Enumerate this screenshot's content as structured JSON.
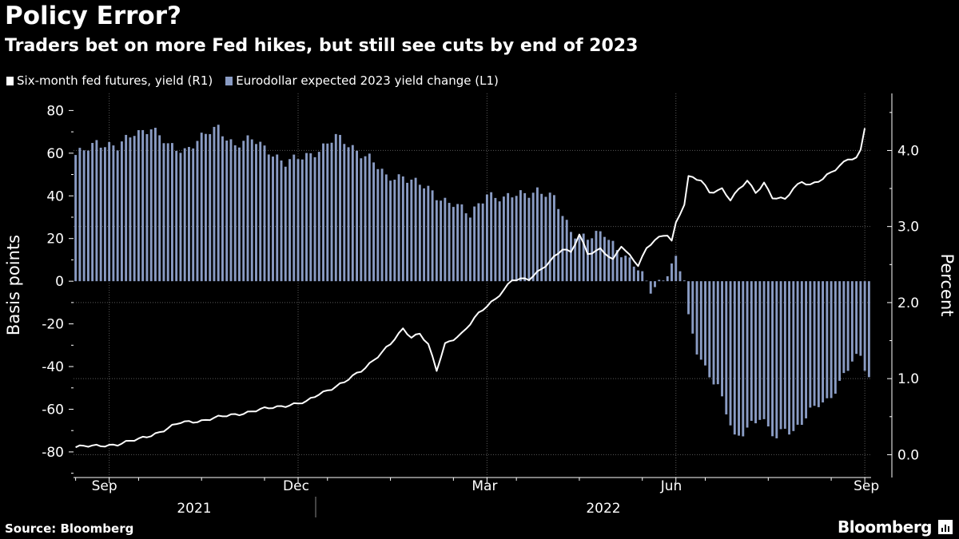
{
  "header": {
    "title": "Policy Error?",
    "subtitle": "Traders bet on more Fed hikes, but still see cuts by end of 2023"
  },
  "legend": {
    "line_label": "Six-month fed futures, yield (R1)",
    "bar_label": "Eurodollar expected 2023 yield change (L1)"
  },
  "footer": {
    "source": "Source: Bloomberg",
    "brand": "Bloomberg"
  },
  "colors": {
    "background": "#000000",
    "line": "#ffffff",
    "bars": "#8a9cc4",
    "grid": "#5a5a5a",
    "text": "#ffffff"
  },
  "chart_data": {
    "type": "bar+line",
    "title": "Policy Error?",
    "subtitle": "Traders bet on more Fed hikes, but still see cuts by end of 2023",
    "left_axis": {
      "label": "Basis points",
      "range": [
        -92,
        88
      ],
      "ticks": [
        80,
        60,
        40,
        20,
        0,
        -20,
        -40,
        -60,
        -80
      ]
    },
    "right_axis": {
      "label": "Percent",
      "range": [
        -0.3,
        4.75
      ],
      "ticks": [
        "4.0",
        "3.0",
        "2.0",
        "1.0",
        "0.0"
      ]
    },
    "x_axis": {
      "month_ticks": [
        "Sep",
        "Dec",
        "Mar",
        "Jun",
        "Sep"
      ],
      "month_tick_index": [
        8,
        53,
        98,
        143,
        188
      ],
      "year_labels": [
        "2021",
        "2022"
      ],
      "total_days": 190
    },
    "series": [
      {
        "name": "Eurodollar expected 2023 yield change (L1)",
        "axis": "left",
        "kind": "bar",
        "keypoints": [
          [
            0,
            58
          ],
          [
            5,
            66
          ],
          [
            10,
            62
          ],
          [
            14,
            70
          ],
          [
            18,
            72
          ],
          [
            22,
            63
          ],
          [
            26,
            62
          ],
          [
            30,
            67
          ],
          [
            34,
            72
          ],
          [
            38,
            64
          ],
          [
            42,
            66
          ],
          [
            46,
            62
          ],
          [
            50,
            55
          ],
          [
            54,
            58
          ],
          [
            58,
            62
          ],
          [
            62,
            67
          ],
          [
            66,
            63
          ],
          [
            70,
            58
          ],
          [
            74,
            48
          ],
          [
            78,
            50
          ],
          [
            82,
            45
          ],
          [
            86,
            40
          ],
          [
            90,
            37
          ],
          [
            94,
            30
          ],
          [
            98,
            42
          ],
          [
            102,
            38
          ],
          [
            106,
            41
          ],
          [
            110,
            43
          ],
          [
            114,
            38
          ],
          [
            118,
            24
          ],
          [
            122,
            20
          ],
          [
            126,
            22
          ],
          [
            130,
            14
          ],
          [
            134,
            5
          ],
          [
            137,
            -4
          ],
          [
            140,
            2
          ],
          [
            143,
            10
          ],
          [
            145,
            0
          ],
          [
            146,
            -18
          ],
          [
            148,
            -32
          ],
          [
            150,
            -40
          ],
          [
            153,
            -50
          ],
          [
            155,
            -62
          ],
          [
            157,
            -74
          ],
          [
            159,
            -70
          ],
          [
            161,
            -66
          ],
          [
            163,
            -64
          ],
          [
            165,
            -70
          ],
          [
            167,
            -74
          ],
          [
            169,
            -68
          ],
          [
            171,
            -70
          ],
          [
            173,
            -66
          ],
          [
            175,
            -62
          ],
          [
            177,
            -58
          ],
          [
            179,
            -56
          ],
          [
            181,
            -50
          ],
          [
            183,
            -44
          ],
          [
            185,
            -38
          ],
          [
            187,
            -36
          ],
          [
            189,
            -45
          ]
        ]
      },
      {
        "name": "Six-month fed futures, yield (R1)",
        "axis": "right",
        "kind": "line",
        "keypoints": [
          [
            0,
            0.11
          ],
          [
            5,
            0.11
          ],
          [
            10,
            0.14
          ],
          [
            15,
            0.2
          ],
          [
            20,
            0.3
          ],
          [
            25,
            0.42
          ],
          [
            30,
            0.45
          ],
          [
            35,
            0.5
          ],
          [
            40,
            0.55
          ],
          [
            45,
            0.6
          ],
          [
            50,
            0.65
          ],
          [
            55,
            0.69
          ],
          [
            58,
            0.8
          ],
          [
            60,
            0.85
          ],
          [
            64,
            0.95
          ],
          [
            68,
            1.1
          ],
          [
            72,
            1.3
          ],
          [
            75,
            1.45
          ],
          [
            78,
            1.65
          ],
          [
            80,
            1.55
          ],
          [
            82,
            1.6
          ],
          [
            84,
            1.45
          ],
          [
            86,
            1.1
          ],
          [
            88,
            1.45
          ],
          [
            92,
            1.6
          ],
          [
            96,
            1.85
          ],
          [
            100,
            2.05
          ],
          [
            104,
            2.3
          ],
          [
            108,
            2.3
          ],
          [
            112,
            2.5
          ],
          [
            116,
            2.7
          ],
          [
            118,
            2.65
          ],
          [
            120,
            2.9
          ],
          [
            122,
            2.65
          ],
          [
            125,
            2.7
          ],
          [
            128,
            2.55
          ],
          [
            130,
            2.75
          ],
          [
            134,
            2.5
          ],
          [
            136,
            2.7
          ],
          [
            138,
            2.82
          ],
          [
            141,
            2.9
          ],
          [
            142,
            2.82
          ],
          [
            143,
            3.05
          ],
          [
            145,
            3.3
          ],
          [
            146,
            3.65
          ],
          [
            149,
            3.6
          ],
          [
            151,
            3.45
          ],
          [
            154,
            3.5
          ],
          [
            156,
            3.35
          ],
          [
            158,
            3.48
          ],
          [
            160,
            3.6
          ],
          [
            162,
            3.45
          ],
          [
            164,
            3.58
          ],
          [
            166,
            3.38
          ],
          [
            169,
            3.35
          ],
          [
            171,
            3.5
          ],
          [
            173,
            3.6
          ],
          [
            175,
            3.55
          ],
          [
            178,
            3.62
          ],
          [
            181,
            3.75
          ],
          [
            184,
            3.9
          ],
          [
            186,
            3.9
          ],
          [
            187,
            4.0
          ],
          [
            188,
            4.3
          ]
        ]
      }
    ]
  }
}
